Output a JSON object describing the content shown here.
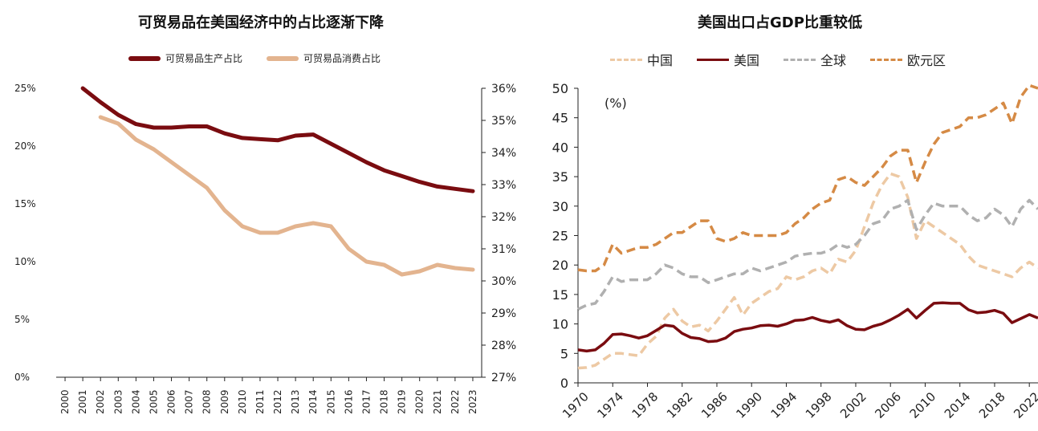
{
  "chart_data": [
    {
      "type": "line",
      "title": "可贸易品在美国经济中的占比逐渐下降",
      "x": [
        "2000",
        "2001",
        "2002",
        "2003",
        "2004",
        "2005",
        "2006",
        "2007",
        "2008",
        "2009",
        "2010",
        "2011",
        "2012",
        "2013",
        "2014",
        "2015",
        "2016",
        "2017",
        "2018",
        "2019",
        "2020",
        "2021",
        "2022",
        "2023"
      ],
      "ylim_left": [
        0,
        25
      ],
      "ylim_right": [
        27,
        36
      ],
      "y_ticks_left": [
        "0%",
        "5%",
        "10%",
        "15%",
        "20%",
        "25%"
      ],
      "y_ticks_right": [
        "27%",
        "28%",
        "29%",
        "30%",
        "31%",
        "32%",
        "33%",
        "34%",
        "35%",
        "36%"
      ],
      "legend_position": "top",
      "series": [
        {
          "name": "可贸易品生产占比",
          "axis": "left",
          "color": "#7a0c10",
          "values": [
            null,
            25.0,
            23.8,
            22.7,
            21.9,
            21.6,
            21.6,
            21.7,
            21.7,
            21.1,
            20.7,
            20.6,
            20.5,
            20.9,
            21.0,
            20.2,
            19.4,
            18.6,
            17.9,
            17.4,
            16.9,
            16.5,
            16.3,
            16.1
          ]
        },
        {
          "name": "可贸易品消费占比",
          "axis": "right",
          "color": "#e3b48f",
          "values": [
            null,
            null,
            35.1,
            34.9,
            34.4,
            34.1,
            33.7,
            33.3,
            32.9,
            32.2,
            31.7,
            31.5,
            31.5,
            31.7,
            31.8,
            31.7,
            31.0,
            30.6,
            30.5,
            30.2,
            30.3,
            30.5,
            30.4,
            30.35
          ]
        }
      ]
    },
    {
      "type": "line",
      "title": "美国出口占GDP比重较低",
      "unit_label": "(%)",
      "x_start": 1970,
      "x_end": 2023,
      "x_ticks": [
        "1970",
        "1974",
        "1978",
        "1982",
        "1986",
        "1990",
        "1994",
        "1998",
        "2002",
        "2006",
        "2010",
        "2014",
        "2018",
        "2022"
      ],
      "ylim": [
        0,
        50
      ],
      "y_ticks": [
        "0",
        "5",
        "10",
        "15",
        "20",
        "25",
        "30",
        "35",
        "40",
        "45",
        "50"
      ],
      "legend_position": "top",
      "series": [
        {
          "name": "中国",
          "style": "dashed",
          "color": "#edc9a4",
          "values": [
            2.5,
            2.6,
            3.0,
            4.0,
            5.0,
            5.0,
            4.8,
            4.6,
            6.6,
            7.9,
            11.0,
            12.5,
            10.5,
            9.5,
            9.8,
            8.8,
            10.5,
            12.5,
            14.5,
            11.5,
            13.5,
            14.5,
            15.5,
            16.0,
            18.0,
            17.5,
            18.0,
            19.0,
            19.5,
            18.5,
            21.0,
            20.5,
            22.5,
            26.5,
            30.5,
            33.5,
            35.5,
            35.0,
            31.5,
            24.5,
            27.5,
            26.5,
            25.5,
            24.5,
            23.5,
            21.5,
            20.0,
            19.5,
            19.0,
            18.5,
            18.0,
            19.5,
            20.5,
            19.5
          ]
        },
        {
          "name": "美国",
          "style": "solid",
          "color": "#7a0c10",
          "values": [
            5.6,
            5.4,
            5.6,
            6.7,
            8.2,
            8.3,
            8.0,
            7.6,
            8.0,
            8.9,
            9.8,
            9.6,
            8.4,
            7.7,
            7.5,
            7.0,
            7.1,
            7.6,
            8.7,
            9.1,
            9.3,
            9.7,
            9.8,
            9.6,
            10.0,
            10.6,
            10.7,
            11.1,
            10.6,
            10.3,
            10.7,
            9.7,
            9.1,
            9.0,
            9.6,
            10.0,
            10.7,
            11.5,
            12.5,
            11.0,
            12.3,
            13.5,
            13.6,
            13.5,
            13.5,
            12.4,
            11.9,
            12.0,
            12.3,
            11.8,
            10.2,
            10.9,
            11.6,
            11.0
          ]
        },
        {
          "name": "全球",
          "style": "dashed",
          "color": "#b0b0b0",
          "values": [
            12.5,
            13.2,
            13.5,
            15.5,
            18.0,
            17.2,
            17.5,
            17.5,
            17.5,
            18.5,
            20.0,
            19.5,
            18.5,
            18.0,
            18.0,
            17.0,
            17.5,
            18.0,
            18.5,
            18.5,
            19.5,
            19.0,
            19.5,
            20.0,
            20.5,
            21.5,
            21.8,
            22.0,
            22.0,
            22.5,
            23.5,
            23.0,
            23.5,
            25.0,
            27.0,
            27.5,
            29.5,
            30.0,
            31.0,
            26.0,
            28.5,
            30.5,
            30.0,
            30.0,
            30.0,
            28.5,
            27.5,
            28.0,
            29.5,
            28.5,
            26.5,
            29.5,
            31.0,
            29.5
          ]
        },
        {
          "name": "欧元区",
          "style": "dashed",
          "color": "#d58a45",
          "values": [
            19.2,
            19.0,
            19.0,
            20.0,
            23.5,
            22.0,
            22.5,
            23.0,
            23.0,
            23.5,
            24.5,
            25.5,
            25.5,
            26.5,
            27.5,
            27.5,
            24.5,
            24.0,
            24.5,
            25.5,
            25.0,
            25.0,
            25.0,
            25.0,
            25.5,
            27.0,
            28.0,
            29.5,
            30.5,
            31.0,
            34.5,
            35.0,
            34.0,
            33.5,
            35.0,
            36.5,
            38.5,
            39.5,
            39.5,
            34.0,
            37.5,
            40.5,
            42.5,
            43.0,
            43.5,
            45.0,
            45.0,
            45.5,
            46.5,
            47.5,
            44.0,
            48.5,
            50.5,
            50.0
          ]
        }
      ]
    }
  ]
}
